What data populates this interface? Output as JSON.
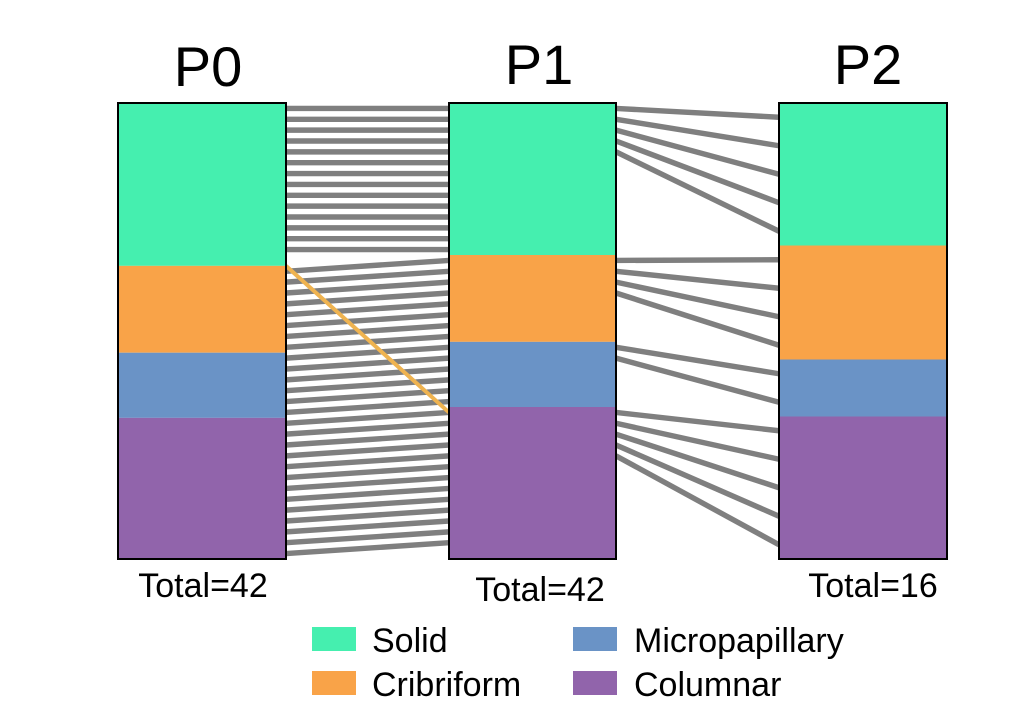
{
  "chart_data": {
    "type": "alluvial",
    "categories": [
      "Solid",
      "Cribriform",
      "Micropapillary",
      "Columnar"
    ],
    "colors": {
      "Solid": "#45EFAF",
      "Cribriform": "#F9A348",
      "Micropapillary": "#6A93C6",
      "Columnar": "#9164AB"
    },
    "link_color": "#7F7F7F",
    "highlight_color": "#EFB350",
    "columns": [
      {
        "name": "P0",
        "total_label": "Total=42",
        "total": 42,
        "counts": {
          "Solid": 15,
          "Cribriform": 8,
          "Micropapillary": 6,
          "Columnar": 13
        }
      },
      {
        "name": "P1",
        "total_label": "Total=42",
        "total": 42,
        "counts": {
          "Solid": 14,
          "Cribriform": 8,
          "Micropapillary": 6,
          "Columnar": 14
        }
      },
      {
        "name": "P2",
        "total_label": "Total=16",
        "total": 16,
        "counts": {
          "Solid": 5,
          "Cribriform": 4,
          "Micropapillary": 2,
          "Columnar": 5
        }
      }
    ],
    "transitions": [
      {
        "from": "P0",
        "to": "P1",
        "counts": {
          "Solid": 14,
          "Cribriform": 8,
          "Micropapillary": 6,
          "Columnar": 13
        },
        "highlight": {
          "from_category": "Solid",
          "to_category": "Columnar",
          "count": 1
        }
      },
      {
        "from": "P1",
        "to": "P2",
        "counts": {
          "Solid": 5,
          "Cribriform": 4,
          "Micropapillary": 2,
          "Columnar": 5
        }
      }
    ],
    "legend": [
      {
        "label": "Solid",
        "color": "#45EFAF"
      },
      {
        "label": "Micropapillary",
        "color": "#6A93C6"
      },
      {
        "label": "Cribriform",
        "color": "#F9A348"
      },
      {
        "label": "Columnar",
        "color": "#9164AB"
      }
    ]
  }
}
